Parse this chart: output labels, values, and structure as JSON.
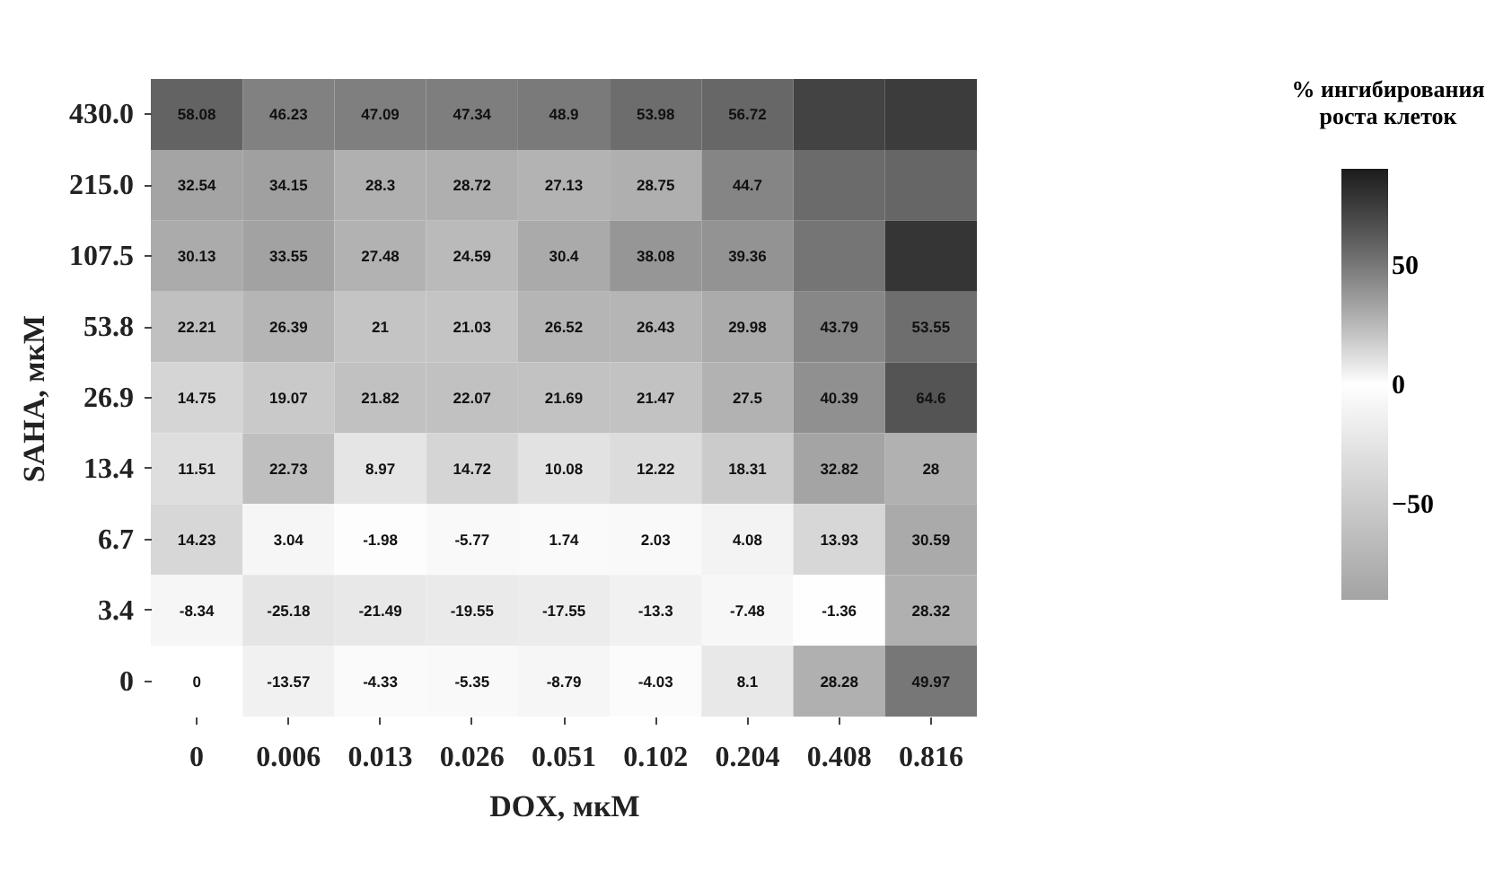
{
  "chart_data": {
    "type": "heatmap",
    "xlabel": "DOX, мкМ",
    "ylabel": "SAHA, мкМ",
    "legend_title": "% ингибирования\nроста клеток",
    "categories": [
      "0",
      "0.006",
      "0.013",
      "0.026",
      "0.051",
      "0.102",
      "0.204",
      "0.408",
      "0.816"
    ],
    "y_categories": [
      "430.0",
      "215.0",
      "107.5",
      "53.8",
      "26.9",
      "13.4",
      "6.7",
      "3.4",
      "0"
    ],
    "cells": [
      [
        58.08,
        46.23,
        47.09,
        47.34,
        48.9,
        53.98,
        56.72,
        72,
        75
      ],
      [
        32.54,
        34.15,
        28.3,
        28.72,
        27.13,
        28.75,
        44.7,
        55,
        57
      ],
      [
        30.13,
        33.55,
        27.48,
        24.59,
        30.4,
        38.08,
        39.36,
        51,
        78
      ],
      [
        22.21,
        26.39,
        21,
        21.03,
        26.52,
        26.43,
        29.98,
        43.79,
        53.55
      ],
      [
        14.75,
        19.07,
        21.82,
        22.07,
        21.69,
        21.47,
        27.5,
        40.39,
        64.6
      ],
      [
        11.51,
        22.73,
        8.97,
        14.72,
        10.08,
        12.22,
        18.31,
        32.82,
        28
      ],
      [
        14.23,
        3.04,
        -1.98,
        -5.77,
        1.74,
        2.03,
        4.08,
        13.93,
        30.59
      ],
      [
        -8.34,
        -25.18,
        -21.49,
        -19.55,
        -17.55,
        -13.3,
        -7.48,
        -1.36,
        28.32
      ],
      [
        0,
        -13.57,
        -4.33,
        -5.35,
        -8.79,
        -4.03,
        8.1,
        28.28,
        49.97
      ]
    ],
    "cell_labels": [
      [
        "58.08",
        "46.23",
        "47.09",
        "47.34",
        "48.9",
        "53.98",
        "56.72",
        null,
        null
      ],
      [
        "32.54",
        "34.15",
        "28.3",
        "28.72",
        "27.13",
        "28.75",
        "44.7",
        null,
        null
      ],
      [
        "30.13",
        "33.55",
        "27.48",
        "24.59",
        "30.4",
        "38.08",
        "39.36",
        null,
        null
      ],
      [
        "22.21",
        "26.39",
        "21",
        "21.03",
        "26.52",
        "26.43",
        "29.98",
        "43.79",
        "53.55"
      ],
      [
        "14.75",
        "19.07",
        "21.82",
        "22.07",
        "21.69",
        "21.47",
        "27.5",
        "40.39",
        "64.6"
      ],
      [
        "11.51",
        "22.73",
        "8.97",
        "14.72",
        "10.08",
        "12.22",
        "18.31",
        "32.82",
        "28"
      ],
      [
        "14.23",
        "3.04",
        "-1.98",
        "-5.77",
        "1.74",
        "2.03",
        "4.08",
        "13.93",
        "30.59"
      ],
      [
        "-8.34",
        "-25.18",
        "-21.49",
        "-19.55",
        "-17.55",
        "-13.3",
        "-7.48",
        "-1.36",
        "28.32"
      ],
      [
        "0",
        "-13.57",
        "-4.33",
        "-5.35",
        "-8.79",
        "-4.03",
        "8.1",
        "28.28",
        "49.97"
      ]
    ],
    "clim": [
      -90,
      90
    ],
    "cticks": [
      -50,
      0,
      50
    ]
  }
}
